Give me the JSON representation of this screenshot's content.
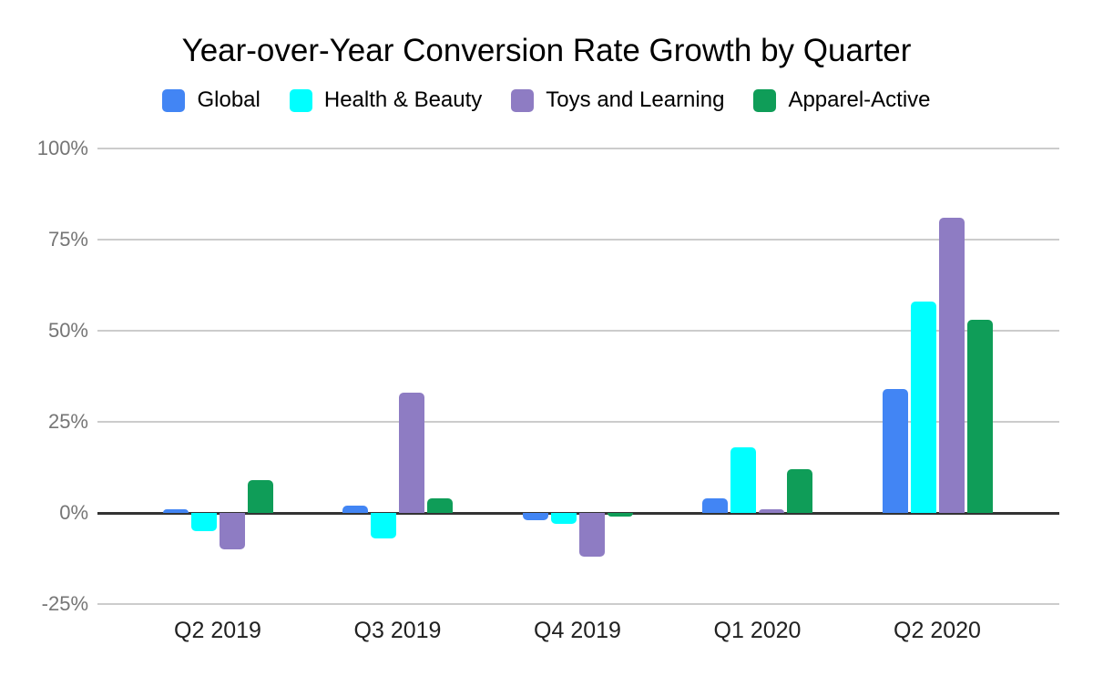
{
  "chart_data": {
    "type": "bar",
    "title": "Year-over-Year Conversion Rate Growth by Quarter",
    "categories": [
      "Q2 2019",
      "Q3 2019",
      "Q4 2019",
      "Q1 2020",
      "Q2 2020"
    ],
    "series": [
      {
        "name": "Global",
        "color": "#4285f4",
        "values": [
          1,
          2,
          -2,
          4,
          34
        ]
      },
      {
        "name": "Health & Beauty",
        "color": "#00ffff",
        "values": [
          -5,
          -7,
          -3,
          18,
          58
        ]
      },
      {
        "name": "Toys and Learning",
        "color": "#8e7cc3",
        "values": [
          -10,
          33,
          -12,
          1,
          81
        ]
      },
      {
        "name": "Apparel-Active",
        "color": "#0f9d58",
        "values": [
          9,
          4,
          -1,
          12,
          53
        ]
      }
    ],
    "xlabel": "",
    "ylabel": "",
    "ylim": [
      -25,
      100
    ],
    "yticks": [
      {
        "value": 100,
        "label": "100%"
      },
      {
        "value": 75,
        "label": "75%"
      },
      {
        "value": 50,
        "label": "50%"
      },
      {
        "value": 25,
        "label": "25%"
      },
      {
        "value": 0,
        "label": "0%"
      },
      {
        "value": -25,
        "label": "-25%"
      }
    ],
    "grid": true,
    "legend_position": "top"
  },
  "colors": {
    "background": "#ffffff",
    "gridline": "#cccccc",
    "zero_axis": "#333333",
    "y_tick_text": "#757575",
    "x_tick_text": "#212121",
    "title_text": "#000000"
  }
}
